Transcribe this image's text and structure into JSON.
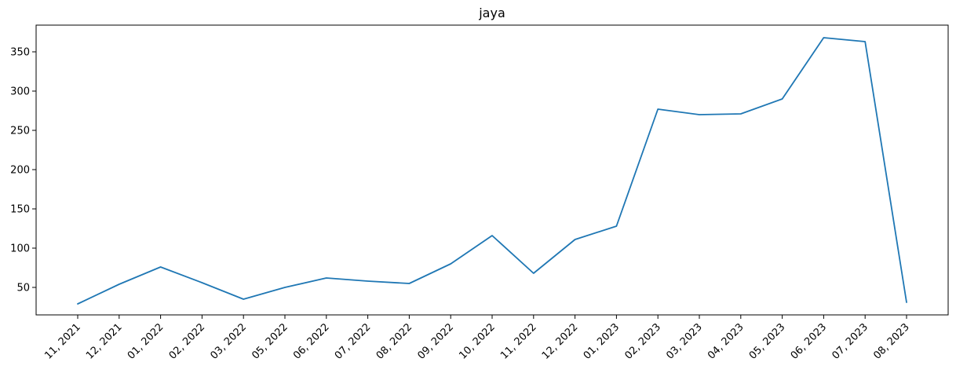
{
  "chart_data": {
    "type": "line",
    "title": "jaya",
    "xlabel": "",
    "ylabel": "",
    "categories": [
      "11, 2021",
      "12, 2021",
      "01, 2022",
      "02, 2022",
      "03, 2022",
      "05, 2022",
      "06, 2022",
      "07, 2022",
      "08, 2022",
      "09, 2022",
      "10, 2022",
      "11, 2022",
      "12, 2022",
      "01, 2023",
      "02, 2023",
      "03, 2023",
      "04, 2023",
      "05, 2023",
      "06, 2023",
      "07, 2023",
      "08, 2023"
    ],
    "series": [
      {
        "values": [
          29,
          54,
          76,
          56,
          35,
          50,
          62,
          58,
          55,
          80,
          116,
          68,
          111,
          128,
          277,
          270,
          271,
          290,
          368,
          363,
          31
        ]
      }
    ],
    "ylim": [
      15,
      384
    ],
    "yticks": [
      50,
      100,
      150,
      200,
      250,
      300,
      350
    ],
    "grid": false,
    "legend": "none",
    "colors": {
      "line": "#1f77b4",
      "axis": "#000000"
    }
  }
}
